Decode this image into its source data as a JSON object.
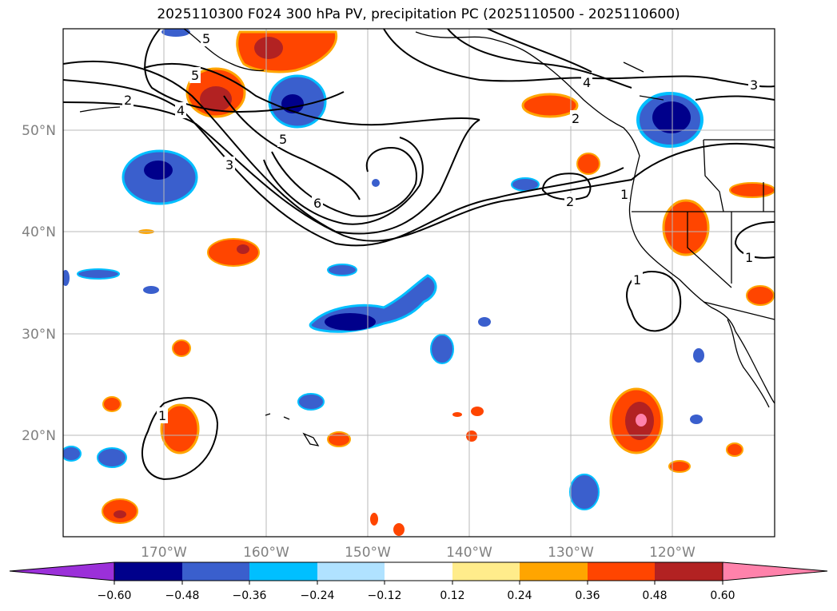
{
  "title": "2025110300 F024 300 hPa PV, precipitation PC (2025110500 - 2025110600)",
  "map": {
    "lon_labels": [
      "170°W",
      "160°W",
      "150°W",
      "140°W",
      "130°W",
      "120°W"
    ],
    "lat_labels": [
      "50°N",
      "40°N",
      "30°N",
      "20°N"
    ],
    "pv_contour_labels": [
      "5",
      "5",
      "2",
      "4",
      "3",
      "5",
      "6",
      "4",
      "2",
      "2",
      "1",
      "3",
      "1",
      "1",
      "1"
    ]
  },
  "colorbar": {
    "levels": [
      "−0.60",
      "−0.48",
      "−0.36",
      "−0.24",
      "−0.12",
      "0.12",
      "0.24",
      "0.36",
      "0.48",
      "0.60"
    ],
    "colors": [
      "#9b30d9",
      "#00008b",
      "#3a5fcd",
      "#00bfff",
      "#b0e2ff",
      "#ffffff",
      "#ffec8b",
      "#ffa500",
      "#ff4500",
      "#b22222",
      "#ff82ab"
    ]
  }
}
